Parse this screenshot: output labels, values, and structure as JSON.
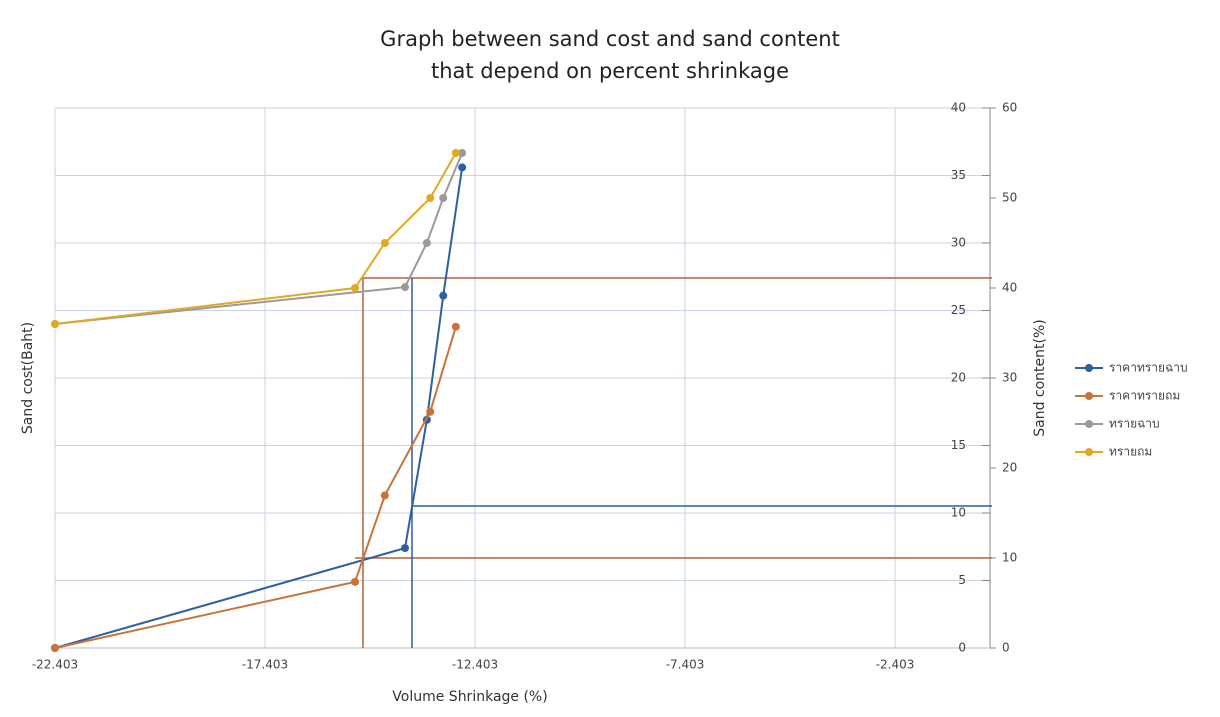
{
  "chart_data": {
    "type": "line",
    "title": "Graph between sand cost and sand content",
    "subtitle": "that depend on percent shrinkage",
    "x_label": "Volume Shrinkage (%)",
    "y_label": "Sand cost(Baht)",
    "y2_label": "Sand content(%)",
    "xlim": [
      -22.403,
      0
    ],
    "xticks": [
      -22.403,
      -17.403,
      -12.403,
      -7.403,
      -2.403
    ],
    "ylim": [
      0,
      40
    ],
    "yticks": [
      0,
      5,
      10,
      15,
      20,
      25,
      30,
      35,
      40
    ],
    "y2lim": [
      0,
      60
    ],
    "y2ticks": [
      0,
      10,
      20,
      30,
      40,
      50,
      60
    ],
    "grid": true,
    "legend": "right",
    "series": [
      {
        "name": "ราคาทรายฉาบ",
        "color": "#2e5fa3",
        "x": [
          -22.403,
          -14.07,
          -13.55,
          -13.16,
          -12.71
        ],
        "values": [
          0,
          7.4,
          16.9,
          26.1,
          35.6
        ]
      },
      {
        "name": "ราคาทรายถม",
        "color": "#c8733a",
        "x": [
          -22.403,
          -15.26,
          -14.55,
          -13.47,
          -12.86
        ],
        "values": [
          0,
          4.9,
          11.3,
          17.5,
          23.8
        ]
      },
      {
        "name": "ทรายฉาบ",
        "color": "#9a9a9a",
        "axis": "y2",
        "x": [
          -22.403,
          -14.07,
          -13.55,
          -13.16,
          -12.71
        ],
        "values": [
          36,
          40.1,
          45,
          50,
          55
        ]
      },
      {
        "name": "ทรายถม",
        "color": "#e3a823",
        "axis": "y2",
        "x": [
          -22.403,
          -15.26,
          -14.55,
          -13.47,
          -12.86
        ],
        "values": [
          36,
          40,
          45,
          50,
          55
        ]
      }
    ]
  }
}
